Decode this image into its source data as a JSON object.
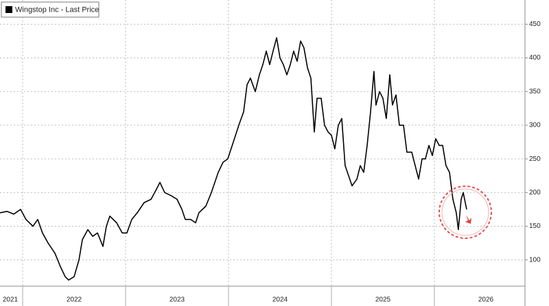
{
  "chart_data": {
    "type": "line",
    "x": [
      2021.78,
      2021.847,
      2021.913,
      2021.98,
      2022.033,
      2022.1,
      2022.147,
      2022.193,
      2022.247,
      2022.313,
      2022.367,
      2022.413,
      2022.447,
      2022.5,
      2022.547,
      2022.58,
      2022.633,
      2022.68,
      2022.727,
      2022.78,
      2022.813,
      2022.847,
      2022.913,
      2022.967,
      2023.013,
      2023.06,
      2023.113,
      2023.18,
      2023.247,
      2023.3,
      2023.333,
      2023.38,
      2023.447,
      2023.5,
      2023.547,
      2023.58,
      2023.633,
      2023.68,
      2023.713,
      2023.78,
      2023.833,
      2023.9,
      2023.947,
      2023.993,
      2024.047,
      2024.1,
      2024.147,
      2024.18,
      2024.213,
      2024.26,
      2024.3,
      2024.333,
      2024.367,
      2024.4,
      2024.433,
      2024.467,
      2024.5,
      2024.533,
      2024.567,
      2024.6,
      2024.633,
      2024.667,
      2024.7,
      2024.733,
      2024.767,
      2024.8,
      2024.833,
      2024.86,
      2024.9,
      2024.933,
      2024.967,
      2025,
      2025.033,
      2025.067,
      2025.1,
      2025.133,
      2025.167,
      2025.2,
      2025.247,
      2025.28,
      2025.313,
      2025.347,
      2025.38,
      2025.413,
      2025.433,
      2025.467,
      2025.5,
      2025.533,
      2025.567,
      2025.593,
      2025.627,
      2025.66,
      2025.7,
      2025.733,
      2025.78,
      2025.813,
      2025.847,
      2025.88,
      2025.913,
      2025.947,
      2025.98,
      2026.013,
      2026.047,
      2026.08,
      2026.113,
      2026.147,
      2026.18,
      2026.213,
      2026.233,
      2026.26,
      2026.28,
      2026.313
    ],
    "series": [
      {
        "name": "Wingstop Inc - Last Price",
        "color": "#000000",
        "values": [
          170,
          172,
          168,
          175,
          160,
          150,
          160,
          140,
          125,
          110,
          90,
          75,
          70,
          75,
          100,
          130,
          145,
          135,
          140,
          120,
          150,
          165,
          155,
          140,
          140,
          160,
          170,
          185,
          190,
          205,
          215,
          200,
          195,
          190,
          175,
          160,
          160,
          155,
          170,
          180,
          200,
          230,
          245,
          250,
          275,
          300,
          320,
          360,
          370,
          350,
          375,
          390,
          410,
          390,
          410,
          430,
          400,
          390,
          375,
          390,
          410,
          395,
          425,
          415,
          385,
          370,
          290,
          340,
          340,
          300,
          290,
          285,
          265,
          300,
          310,
          240,
          225,
          210,
          220,
          240,
          230,
          270,
          320,
          380,
          330,
          350,
          340,
          310,
          375,
          330,
          345,
          300,
          300,
          260,
          260,
          240,
          220,
          250,
          250,
          270,
          255,
          280,
          270,
          270,
          240,
          230,
          190,
          170,
          145,
          190,
          200,
          175
        ]
      }
    ],
    "xlim": [
      2021.78,
      2026.88
    ],
    "xticks": [
      {
        "value": 2021.5,
        "label": "2021"
      },
      {
        "value": 2022.5,
        "label": "2022"
      },
      {
        "value": 2023.5,
        "label": "2023"
      },
      {
        "value": 2024.5,
        "label": "2024"
      },
      {
        "value": 2025.5,
        "label": "2025"
      },
      {
        "value": 2026.5,
        "label": "2026"
      }
    ],
    "xgrid": [
      2022,
      2023,
      2024,
      2025,
      2026
    ],
    "ylim": [
      61,
      486
    ],
    "yticks": [
      100,
      150,
      200,
      250,
      300,
      350,
      400,
      450
    ],
    "grid": true
  }
}
